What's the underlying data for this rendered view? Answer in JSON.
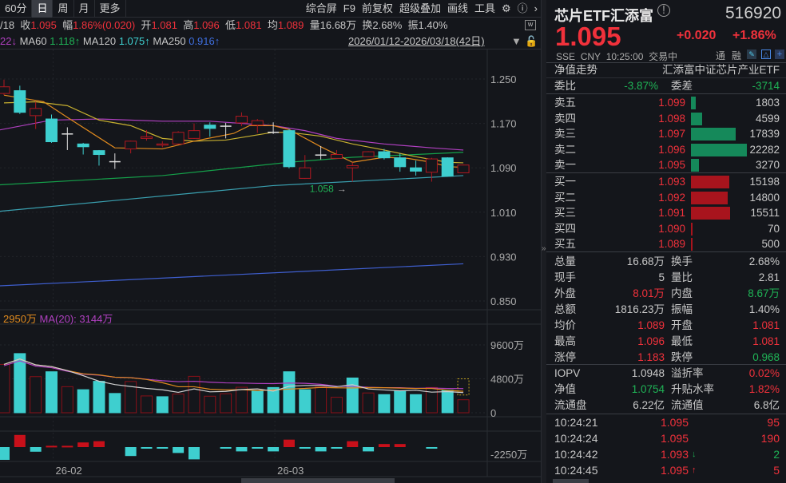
{
  "toolbar": {
    "periods": [
      "60分",
      "日",
      "周",
      "月",
      "更多"
    ],
    "active": "日",
    "tools": [
      "综合屏",
      "F9",
      "前复权",
      "超级叠加",
      "画线",
      "工具"
    ],
    "icons": [
      "gear-icon",
      "help-icon",
      "chevron-right-icon"
    ]
  },
  "info": {
    "date": "/18",
    "close_label": "收",
    "close": "1.095",
    "amp_label": "幅",
    "amp": "1.86%(0.020)",
    "open_label": "开",
    "open": "1.081",
    "high_label": "高",
    "high": "1.096",
    "low_label": "低",
    "low": "1.081",
    "avg_label": "均",
    "avg": "1.089",
    "vol_label": "量",
    "vol": "16.68万",
    "turn_label": "换",
    "turn": "2.68%",
    "swing_label": "振",
    "swing": "1.40%"
  },
  "ma": {
    "ma20_tail": "22↓",
    "ma60_label": "MA60",
    "ma60": "1.118↑",
    "ma120_label": "MA120",
    "ma120": "1.075↑",
    "ma250_label": "MA250",
    "ma250": "0.916↑",
    "range": "2026/01/12-2026/03/18(42日)"
  },
  "chart_data": {
    "type": "candlestick",
    "price_ticks": [
      "1.250",
      "1.170",
      "1.090",
      "1.010",
      "0.930",
      "0.850"
    ],
    "price_tick_values": [
      1.25,
      1.17,
      1.09,
      1.01,
      0.93,
      0.85
    ],
    "min_annotation": "1.058",
    "candles": [
      [
        1.224,
        1.249,
        1.221,
        1.236
      ],
      [
        1.229,
        1.238,
        1.187,
        1.19
      ],
      [
        1.184,
        1.209,
        1.16,
        1.197
      ],
      [
        1.178,
        1.186,
        1.135,
        1.137
      ],
      [
        1.151,
        1.163,
        1.122,
        1.151
      ],
      [
        1.133,
        1.135,
        1.114,
        1.128
      ],
      [
        1.121,
        1.122,
        1.094,
        1.114
      ],
      [
        1.101,
        1.116,
        1.088,
        1.101
      ],
      [
        1.124,
        1.139,
        1.116,
        1.138
      ],
      [
        1.143,
        1.158,
        1.139,
        1.146
      ],
      [
        1.131,
        1.138,
        1.127,
        1.133
      ],
      [
        1.133,
        1.156,
        1.132,
        1.154
      ],
      [
        1.143,
        1.17,
        1.142,
        1.157
      ],
      [
        1.167,
        1.172,
        1.146,
        1.161
      ],
      [
        1.165,
        1.171,
        1.143,
        1.165
      ],
      [
        1.171,
        1.19,
        1.165,
        1.183
      ],
      [
        1.167,
        1.178,
        1.153,
        1.175
      ],
      [
        1.154,
        1.172,
        1.151,
        1.154
      ],
      [
        1.157,
        1.16,
        1.089,
        1.092
      ],
      [
        1.071,
        1.113,
        1.07,
        1.09
      ],
      [
        1.113,
        1.129,
        1.105,
        1.113
      ],
      [
        1.107,
        1.122,
        1.106,
        1.114
      ],
      [
        1.09,
        1.1,
        1.065,
        1.094
      ],
      [
        1.11,
        1.12,
        1.109,
        1.119
      ],
      [
        1.119,
        1.124,
        1.105,
        1.108
      ],
      [
        1.108,
        1.116,
        1.083,
        1.092
      ],
      [
        1.09,
        1.103,
        1.076,
        1.084
      ],
      [
        1.082,
        1.108,
        1.065,
        1.106
      ],
      [
        1.108,
        1.109,
        1.074,
        1.075
      ],
      [
        1.081,
        1.096,
        1.081,
        1.095
      ]
    ],
    "ma5": [
      [
        0,
        1.221
      ],
      [
        2.5,
        1.209
      ],
      [
        4,
        1.181
      ],
      [
        7,
        1.126
      ],
      [
        10,
        1.124
      ],
      [
        12,
        1.138
      ],
      [
        14.5,
        1.152
      ],
      [
        15.5,
        1.166
      ],
      [
        17,
        1.166
      ],
      [
        18,
        1.159
      ],
      [
        20,
        1.128
      ],
      [
        22,
        1.1
      ],
      [
        24,
        1.109
      ],
      [
        25.5,
        1.107
      ],
      [
        27,
        1.1
      ],
      [
        28,
        1.092
      ],
      [
        29,
        1.091
      ]
    ],
    "ma10": [
      [
        0,
        1.207
      ],
      [
        2,
        1.209
      ],
      [
        4,
        1.202
      ],
      [
        6,
        1.176
      ],
      [
        8,
        1.166
      ],
      [
        10,
        1.143
      ],
      [
        12,
        1.138
      ],
      [
        14,
        1.14
      ],
      [
        17,
        1.154
      ],
      [
        18,
        1.154
      ],
      [
        20,
        1.147
      ],
      [
        22,
        1.133
      ],
      [
        24,
        1.122
      ],
      [
        26,
        1.11
      ],
      [
        28,
        1.1
      ],
      [
        29,
        1.099
      ]
    ],
    "ma20": [
      [
        -0.5,
        1.157
      ],
      [
        3,
        1.176
      ],
      [
        6,
        1.178
      ],
      [
        10,
        1.174
      ],
      [
        13,
        1.174
      ],
      [
        17,
        1.166
      ],
      [
        19,
        1.157
      ],
      [
        21,
        1.143
      ],
      [
        24,
        1.133
      ],
      [
        27,
        1.126
      ],
      [
        29,
        1.122
      ]
    ],
    "ma60": [
      [
        -0.5,
        1.059
      ],
      [
        10,
        1.076
      ],
      [
        18,
        1.1
      ],
      [
        22,
        1.109
      ],
      [
        26,
        1.114
      ],
      [
        29,
        1.118
      ]
    ],
    "ma120": [
      [
        -0.5,
        1.011
      ],
      [
        17,
        1.058
      ],
      [
        29,
        1.076
      ]
    ],
    "ma250": [
      [
        -0.5,
        0.877
      ],
      [
        29,
        0.917
      ]
    ],
    "volume": {
      "header_ma10": "2950万",
      "header_ma20": "MA(20): 3144万",
      "ticks": [
        "9600万",
        "4800万",
        "0"
      ],
      "tick_values": [
        9600,
        4800,
        0
      ],
      "values": [
        6840,
        8370,
        5110,
        5800,
        3690,
        3260,
        4450,
        2730,
        4420,
        2380,
        2270,
        2650,
        5150,
        2340,
        2690,
        3610,
        3070,
        3570,
        5800,
        3260,
        3650,
        2190,
        4920,
        2800,
        2570,
        3070,
        2570,
        3570,
        3190,
        1840
      ],
      "up": [
        1,
        0,
        1,
        0,
        1,
        0,
        0,
        0,
        1,
        1,
        0,
        1,
        1,
        1,
        1,
        1,
        0,
        0,
        0,
        0,
        1,
        1,
        0,
        1,
        0,
        0,
        0,
        1,
        0,
        1
      ]
    },
    "indicator": {
      "tick": "-2250万",
      "values": [
        -4000,
        3800,
        -1450,
        400,
        400,
        1450,
        1850,
        0,
        -2800,
        -400,
        -400,
        -1850,
        -3850,
        0,
        -400,
        -1350,
        -400,
        -1350,
        2330,
        -400,
        -1350,
        -400,
        1850,
        -1350,
        960,
        960,
        0,
        -400,
        0,
        0
      ]
    },
    "x_ticks": [
      {
        "label": "26-02",
        "index": 3
      },
      {
        "label": "26-03",
        "index": 17
      }
    ]
  },
  "quote": {
    "name": "芯片ETF汇添富",
    "code": "516920",
    "price": "1.095",
    "change": "+0.020",
    "change_pct": "+1.86%",
    "exchange": "SSE",
    "currency": "CNY",
    "time": "10:25:00",
    "status": "交易中",
    "tong": "通",
    "rong": "融",
    "nav_trend": "净值走势",
    "fullname": "汇添富中证芯片产业ETF",
    "weibi_label": "委比",
    "weibi": "-3.87%",
    "weicha_label": "委差",
    "weicha": "-3714"
  },
  "asks": [
    {
      "label": "卖五",
      "price": "1.099",
      "vol": "1803",
      "n": 1803
    },
    {
      "label": "卖四",
      "price": "1.098",
      "vol": "4599",
      "n": 4599
    },
    {
      "label": "卖三",
      "price": "1.097",
      "vol": "17839",
      "n": 17839
    },
    {
      "label": "卖二",
      "price": "1.096",
      "vol": "22282",
      "n": 22282
    },
    {
      "label": "卖一",
      "price": "1.095",
      "vol": "3270",
      "n": 3270
    }
  ],
  "bids": [
    {
      "label": "买一",
      "price": "1.093",
      "vol": "15198",
      "n": 15198
    },
    {
      "label": "买二",
      "price": "1.092",
      "vol": "14800",
      "n": 14800
    },
    {
      "label": "买三",
      "price": "1.091",
      "vol": "15511",
      "n": 15511
    },
    {
      "label": "买四",
      "price": "1.090",
      "vol": "70",
      "n": 70
    },
    {
      "label": "买五",
      "price": "1.089",
      "vol": "500",
      "n": 500
    }
  ],
  "stats": [
    {
      "l1": "总量",
      "v1": "16.68万",
      "c1": "gray",
      "l2": "换手",
      "v2": "2.68%",
      "c2": "gray"
    },
    {
      "l1": "现手",
      "v1": "5",
      "c1": "gray",
      "l2": "量比",
      "v2": "2.81",
      "c2": "gray"
    },
    {
      "l1": "外盘",
      "v1": "8.01万",
      "c1": "red",
      "l2": "内盘",
      "v2": "8.67万",
      "c2": "green"
    },
    {
      "l1": "总额",
      "v1": "1816.23万",
      "c1": "gray",
      "l2": "振幅",
      "v2": "1.40%",
      "c2": "gray"
    },
    {
      "l1": "均价",
      "v1": "1.089",
      "c1": "red",
      "l2": "开盘",
      "v2": "1.081",
      "c2": "red"
    },
    {
      "l1": "最高",
      "v1": "1.096",
      "c1": "red",
      "l2": "最低",
      "v2": "1.081",
      "c2": "red"
    },
    {
      "l1": "涨停",
      "v1": "1.183",
      "c1": "red",
      "l2": "跌停",
      "v2": "0.968",
      "c2": "green"
    }
  ],
  "etf": [
    {
      "l1": "IOPV",
      "v1": "1.0948",
      "c1": "gray",
      "l2": "溢折率",
      "v2": "0.02%",
      "c2": "red"
    },
    {
      "l1": "净值",
      "v1": "1.0754",
      "c1": "green",
      "l2": "升贴水率",
      "v2": "1.82%",
      "c2": "red"
    },
    {
      "l1": "流通盘",
      "v1": "6.22亿",
      "c1": "gray",
      "l2": "流通值",
      "v2": "6.8亿",
      "c2": "gray"
    }
  ],
  "ticks": [
    {
      "time": "10:24:21",
      "price": "1.095",
      "arrow": "",
      "vol": "95",
      "vc": "red"
    },
    {
      "time": "10:24:24",
      "price": "1.095",
      "arrow": "",
      "vol": "190",
      "vc": "red"
    },
    {
      "time": "10:24:42",
      "price": "1.093",
      "arrow": "↓",
      "vol": "2",
      "vc": "green"
    },
    {
      "time": "10:24:45",
      "price": "1.095",
      "arrow": "↑",
      "vol": "5",
      "vc": "red"
    }
  ],
  "colors": {
    "up": "#f0313b",
    "down": "#3ecfcf",
    "upFill": "#a00f16",
    "ma5": "#e08a1e",
    "ma10": "#c8b030",
    "ma20": "#b040c0",
    "ma60": "#15a04a",
    "ma120": "#3aa0b0",
    "ma250": "#3f5fd0",
    "ask_bar": "#15895a",
    "bid_bar": "#a8141d"
  }
}
